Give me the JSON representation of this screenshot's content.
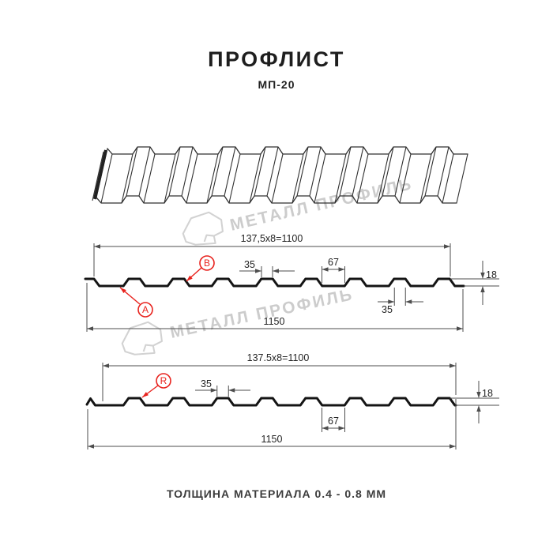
{
  "title": "ПРОФЛИСТ",
  "subtitle": "МП-20",
  "footer": "ТОЛЩИНА МАТЕРИАЛА 0.4 - 0.8 ММ",
  "watermark": {
    "brand": "МЕТАЛЛ ПРОФИЛЬ",
    "logo_icon": "metal-profil-logo"
  },
  "colors": {
    "red": "#e8231e",
    "dim_line": "#4d4d4d",
    "profile_line": "#141414",
    "watermark": "#cccccc"
  },
  "profile_top": {
    "pitch_dim": "137,5x8=1100",
    "crest_width_dim": "35",
    "valley_width_dim": "67",
    "height_dim": "18",
    "crest_width_dim_bottom": "35",
    "overall_width_dim": "1150",
    "point_labels": [
      "A",
      "B"
    ]
  },
  "profile_bottom": {
    "pitch_dim": "137.5x8=1100",
    "crest_width_dim": "35",
    "valley_width_dim": "67",
    "height_dim": "18",
    "overall_width_dim": "1150",
    "point_labels": [
      "R"
    ]
  }
}
